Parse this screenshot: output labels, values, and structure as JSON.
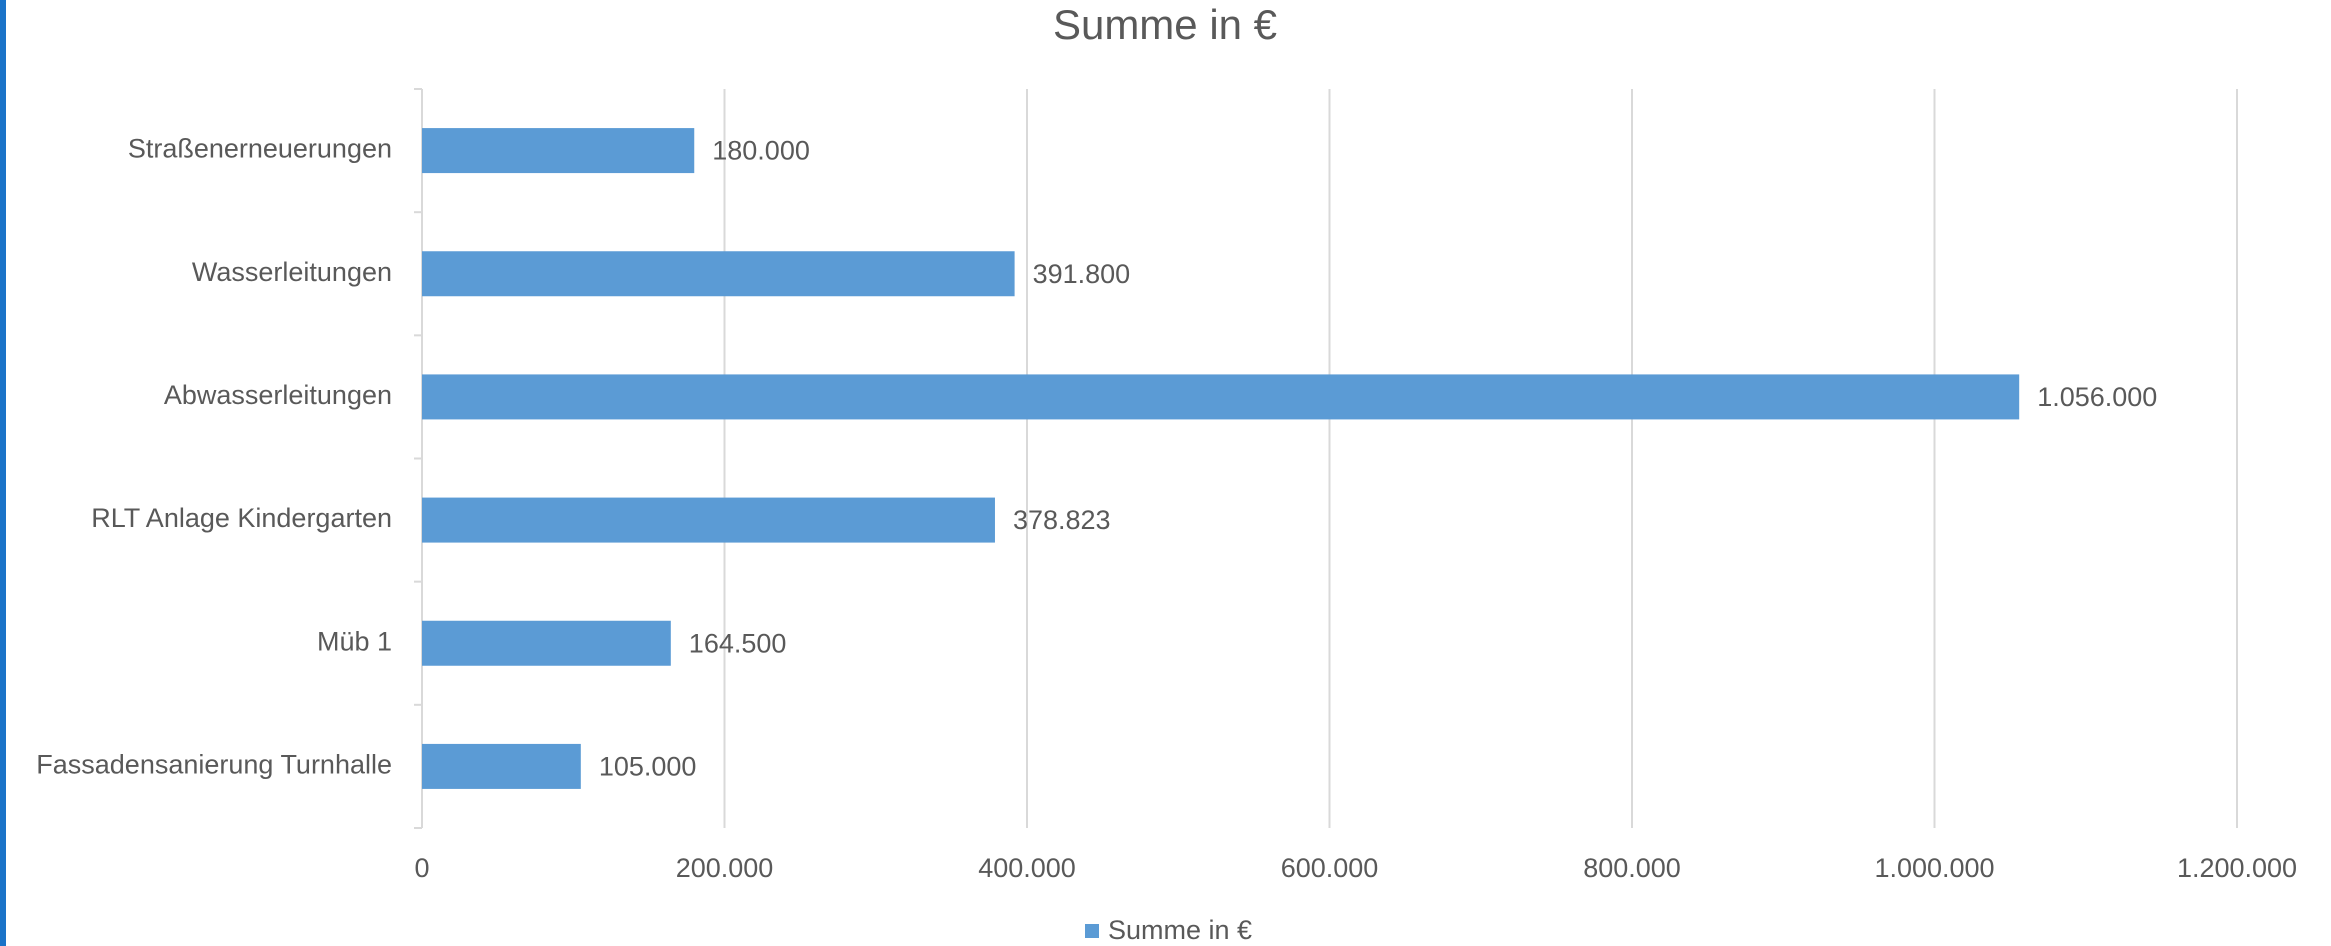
{
  "chart_data": {
    "type": "hbar",
    "title": "Summe in €",
    "categories": [
      "Straßenerneuerungen",
      "Wasserleitungen",
      "Abwasserleitungen",
      "RLT Anlage Kindergarten",
      "Müb 1",
      "Fassadensanierung Turnhalle"
    ],
    "series": [
      {
        "name": "Summe in €",
        "color": "#5b9bd5",
        "values": [
          180000,
          391800,
          1056000,
          378823,
          164500,
          105000
        ],
        "value_labels": [
          "180.000",
          "391.800",
          "1.056.000",
          "378.823",
          "164.500",
          "105.000"
        ]
      }
    ],
    "xlim": [
      0,
      1200000
    ],
    "xticks": [
      0,
      {
        "value": 200000,
        "label": "200.000"
      },
      {
        "value": 400000,
        "label": "400.000"
      },
      {
        "value": 600000,
        "label": "600.000"
      },
      {
        "value": 800000,
        "label": "800.000"
      },
      {
        "value": 1000000,
        "label": "1.000.000"
      },
      {
        "value": 1200000,
        "label": "1.200.000"
      }
    ],
    "grid": true,
    "legend": "bottom"
  }
}
